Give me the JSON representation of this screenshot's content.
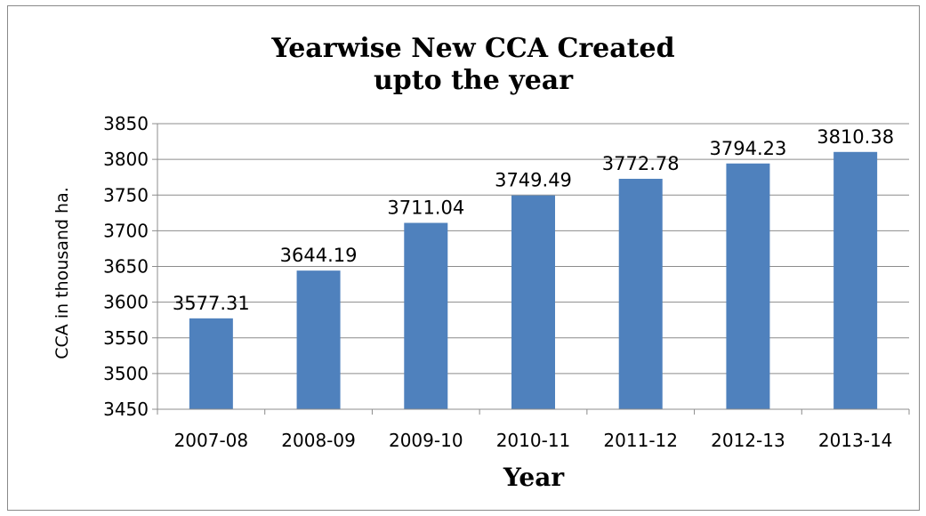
{
  "chart_data": {
    "type": "bar",
    "title_lines": [
      "Yearwise New CCA Created",
      "upto the year"
    ],
    "xlabel": "Year",
    "ylabel": "CCA in thousand ha.",
    "categories": [
      "2007-08",
      "2008-09",
      "2009-10",
      "2010-11",
      "2011-12",
      "2012-13",
      "2013-14"
    ],
    "values": [
      3577.31,
      3644.19,
      3711.04,
      3749.49,
      3772.78,
      3794.23,
      3810.38
    ],
    "value_labels": [
      "3577.31",
      "3644.19",
      "3711.04",
      "3749.49",
      "3772.78",
      "3794.23",
      "3810.38"
    ],
    "ylim": [
      3450,
      3850
    ],
    "yticks": [
      "3450",
      "3500",
      "3550",
      "3600",
      "3650",
      "3700",
      "3750",
      "3800",
      "3850"
    ],
    "grid": true,
    "legend": "none",
    "colors": {
      "bar": "#4f81bd",
      "grid": "#8c8c8c",
      "axis": "#8c8c8c"
    }
  }
}
